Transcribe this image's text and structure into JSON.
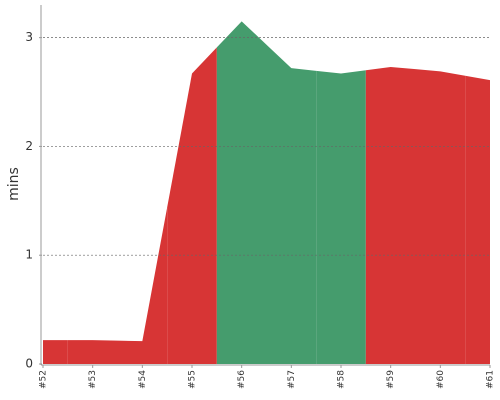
{
  "chart_data": {
    "type": "area",
    "y_label": "mins",
    "categories": [
      "#52",
      "#53",
      "#54",
      "#55",
      "#56",
      "#57",
      "#58",
      "#59",
      "#60",
      "#61"
    ],
    "values": [
      0.22,
      0.22,
      0.21,
      2.67,
      3.15,
      2.72,
      2.67,
      2.73,
      2.69,
      2.61
    ],
    "colors": [
      "#d73535",
      "#d73535",
      "#d73535",
      "#d73535",
      "#459c6d",
      "#459c6d",
      "#459c6d",
      "#d73535",
      "#d73535",
      "#d73535"
    ],
    "ylim": [
      0,
      3.3
    ],
    "yticks": [
      0,
      1,
      2,
      3
    ],
    "grid": true
  }
}
